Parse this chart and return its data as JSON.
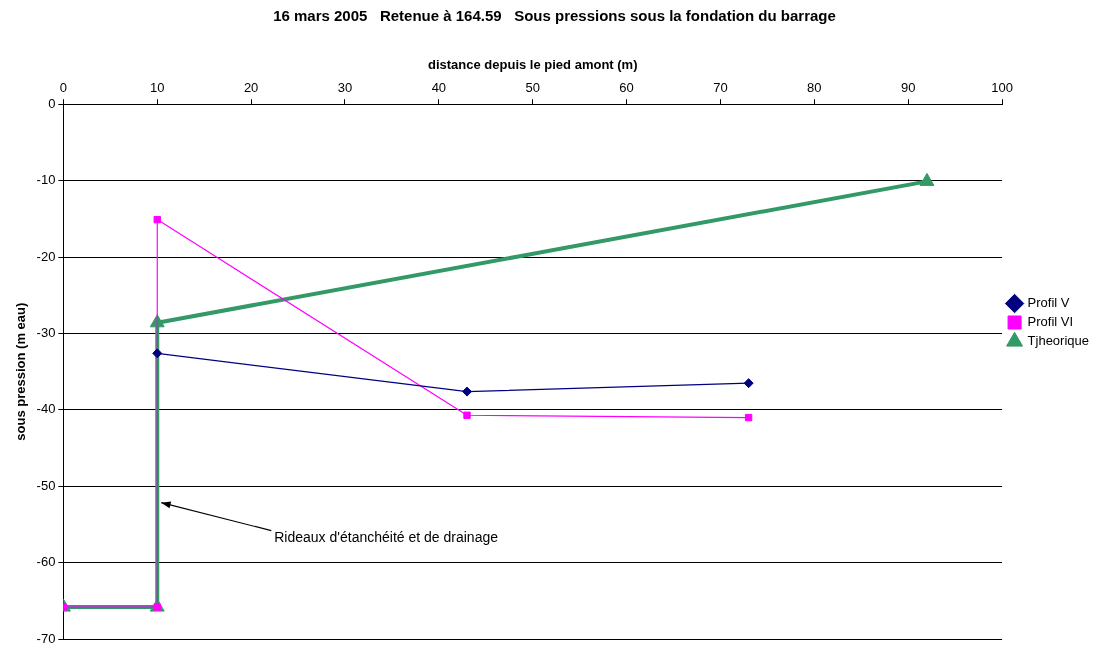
{
  "chart_data": {
    "type": "line",
    "title": "16 mars 2005   Retenue à 164.59   Sous pressions sous la fondation du barrage",
    "xlabel": "distance depuis le pied amont (m)",
    "ylabel": "sous pression (m eau)",
    "xlim": [
      0,
      100
    ],
    "xticks": [
      0,
      10,
      20,
      30,
      40,
      50,
      60,
      70,
      80,
      90,
      100
    ],
    "ylim": [
      -70,
      0
    ],
    "yticks": [
      -70,
      -60,
      -50,
      -40,
      -30,
      -20,
      -10,
      0
    ],
    "grid": "y",
    "legend": "right",
    "series": [
      {
        "name": "Profil V",
        "color": "#000080",
        "marker": "diamond",
        "x": [
          10,
          43,
          73
        ],
        "values": [
          -32.6,
          -37.6,
          -36.5
        ]
      },
      {
        "name": "Profil VI",
        "color": "#ff00ff",
        "marker": "square",
        "x": [
          0,
          10,
          10,
          43,
          73
        ],
        "values": [
          -65.8,
          -65.8,
          -15.1,
          -40.7,
          -41.0
        ]
      },
      {
        "name": "Tjheorique",
        "color": "#339966",
        "marker": "triangle",
        "x": [
          0,
          10,
          10,
          92
        ],
        "values": [
          -65.8,
          -65.8,
          -28.6,
          -10.1
        ]
      }
    ],
    "annotations": [
      {
        "text": "Rideaux d'étanchéité et de drainage",
        "x": 10,
        "y": -52
      }
    ]
  }
}
